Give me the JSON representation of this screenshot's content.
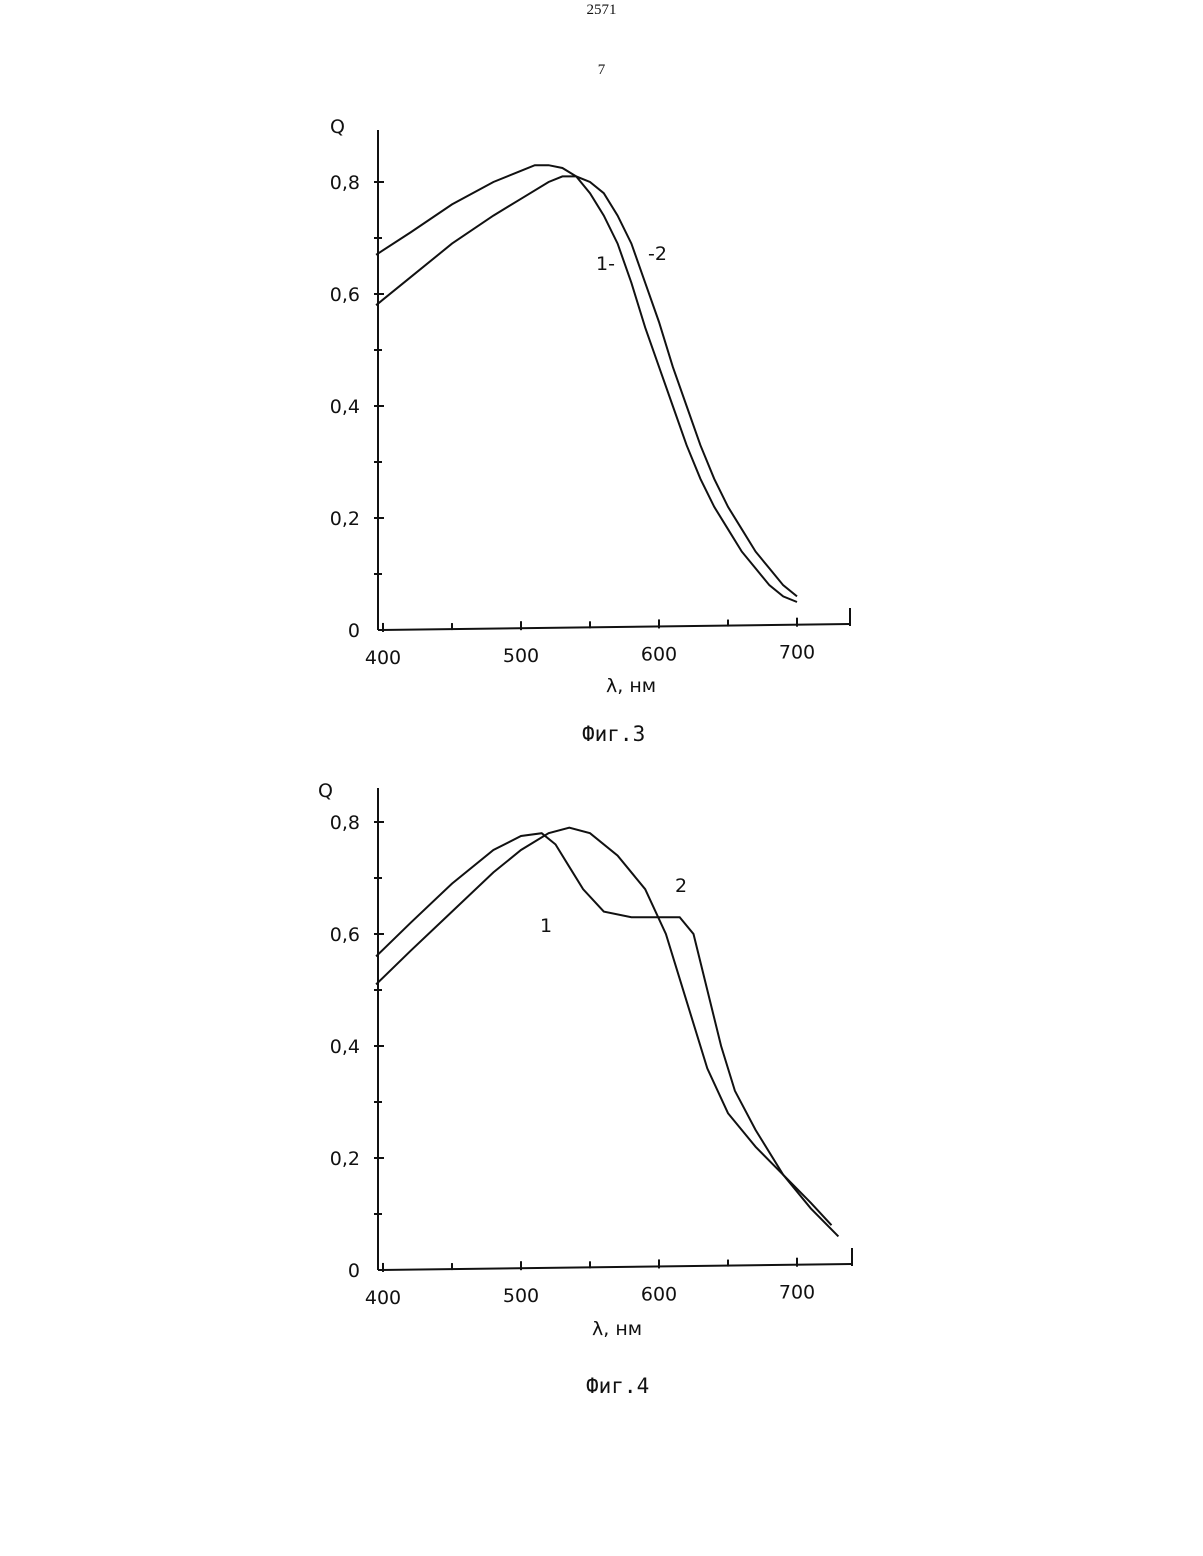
{
  "page": {
    "header_number": "2571",
    "page_number": "7"
  },
  "chart_data": [
    {
      "type": "line",
      "caption": "Фиг.3",
      "ylabel": "Q",
      "xlabel": "λ, нм",
      "xlim": [
        395,
        730
      ],
      "ylim": [
        0,
        0.88
      ],
      "x_tick_labels": [
        "400",
        "500",
        "600",
        "700"
      ],
      "x_tick_values": [
        400,
        500,
        600,
        700
      ],
      "x_minor_ticks": [
        450,
        550,
        650
      ],
      "y_tick_labels": [
        "0",
        "0,2",
        "0,4",
        "0,6",
        "0,8"
      ],
      "y_tick_values": [
        0,
        0.2,
        0.4,
        0.6,
        0.8
      ],
      "y_minor_ticks": [
        0.1,
        0.3,
        0.5,
        0.7
      ],
      "grid": false,
      "series": [
        {
          "name": "1",
          "x": [
            395,
            420,
            450,
            480,
            500,
            510,
            520,
            530,
            540,
            550,
            560,
            570,
            580,
            590,
            600,
            610,
            620,
            630,
            640,
            650,
            660,
            670,
            680,
            690,
            700
          ],
          "y": [
            0.67,
            0.71,
            0.76,
            0.8,
            0.82,
            0.83,
            0.83,
            0.825,
            0.81,
            0.78,
            0.74,
            0.69,
            0.62,
            0.54,
            0.47,
            0.4,
            0.33,
            0.27,
            0.22,
            0.18,
            0.14,
            0.11,
            0.08,
            0.06,
            0.05
          ]
        },
        {
          "name": "2",
          "x": [
            395,
            420,
            450,
            480,
            500,
            520,
            530,
            540,
            550,
            560,
            570,
            580,
            590,
            600,
            610,
            620,
            630,
            640,
            650,
            660,
            670,
            680,
            690,
            700
          ],
          "y": [
            0.58,
            0.63,
            0.69,
            0.74,
            0.77,
            0.8,
            0.81,
            0.81,
            0.8,
            0.78,
            0.74,
            0.69,
            0.62,
            0.55,
            0.47,
            0.4,
            0.33,
            0.27,
            0.22,
            0.18,
            0.14,
            0.11,
            0.08,
            0.06
          ]
        }
      ],
      "labels": {
        "series1": "1-",
        "series2": "-2"
      }
    },
    {
      "type": "line",
      "caption": "Фиг.4",
      "ylabel": "Q",
      "xlabel": "λ, нм",
      "xlim": [
        395,
        735
      ],
      "ylim": [
        0,
        0.88
      ],
      "x_tick_labels": [
        "400",
        "500",
        "600",
        "700"
      ],
      "x_tick_values": [
        400,
        500,
        600,
        700
      ],
      "x_minor_ticks": [
        450,
        550,
        650
      ],
      "y_tick_labels": [
        "0",
        "0,2",
        "0,4",
        "0,6",
        "0,8"
      ],
      "y_tick_values": [
        0,
        0.2,
        0.4,
        0.6,
        0.8
      ],
      "y_minor_ticks": [
        0.1,
        0.3,
        0.5,
        0.7
      ],
      "grid": false,
      "series": [
        {
          "name": "1",
          "x": [
            395,
            420,
            450,
            480,
            500,
            515,
            525,
            535,
            545,
            560,
            580,
            600,
            615,
            625,
            635,
            645,
            655,
            670,
            690,
            710,
            730
          ],
          "y": [
            0.56,
            0.62,
            0.69,
            0.75,
            0.775,
            0.78,
            0.76,
            0.72,
            0.68,
            0.64,
            0.63,
            0.63,
            0.63,
            0.6,
            0.5,
            0.4,
            0.32,
            0.25,
            0.17,
            0.11,
            0.06
          ]
        },
        {
          "name": "2",
          "x": [
            395,
            420,
            450,
            480,
            500,
            520,
            535,
            550,
            570,
            590,
            605,
            620,
            635,
            650,
            670,
            690,
            710,
            725
          ],
          "y": [
            0.51,
            0.57,
            0.64,
            0.71,
            0.75,
            0.78,
            0.79,
            0.78,
            0.74,
            0.68,
            0.6,
            0.48,
            0.36,
            0.28,
            0.22,
            0.17,
            0.12,
            0.08
          ]
        }
      ],
      "labels": {
        "series1": "1",
        "series2": "2"
      }
    }
  ]
}
